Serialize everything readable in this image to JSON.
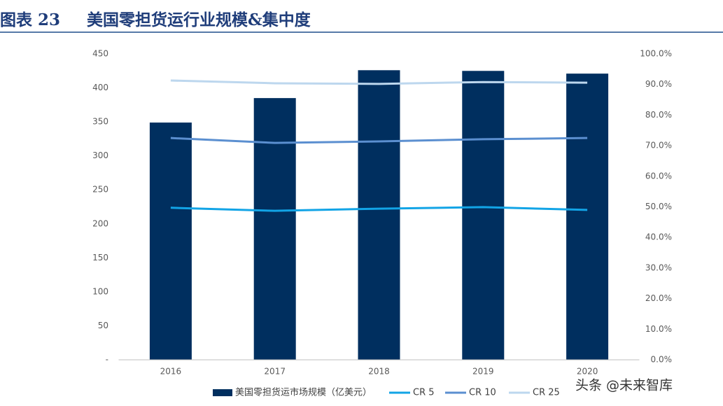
{
  "chart_data": {
    "type": "bar",
    "figure_label": "图表 23",
    "title": "美国零担货运行业规模&集中度",
    "watermark": "头条 @未来智库",
    "categories": [
      "2016",
      "2017",
      "2018",
      "2019",
      "2020"
    ],
    "series": [
      {
        "name": "美国零担货运市场规模（亿美元）",
        "type": "bar",
        "color": "#002f5f",
        "values": [
          349,
          385,
          426,
          425,
          421
        ]
      },
      {
        "name": "CR 5",
        "type": "line",
        "axis": "y2",
        "color": "#12a4e6",
        "values": [
          49.7,
          48.7,
          49.4,
          49.9,
          49.0
        ]
      },
      {
        "name": "CR 10",
        "type": "line",
        "axis": "y2",
        "color": "#5b8fd0",
        "values": [
          72.5,
          70.9,
          71.4,
          72.1,
          72.5
        ]
      },
      {
        "name": "CR 25",
        "type": "line",
        "axis": "y2",
        "color": "#bdd7ee",
        "values": [
          91.3,
          90.4,
          90.2,
          90.8,
          90.6
        ]
      }
    ],
    "ylim": [
      0,
      450
    ],
    "yticks": [
      {
        "value": 0,
        "label": "-"
      },
      50,
      100,
      150,
      200,
      250,
      300,
      350,
      400,
      450
    ],
    "y2lim": [
      0,
      100
    ],
    "y2ticks": [
      {
        "value": 0,
        "label": "0.0%"
      },
      {
        "value": 10,
        "label": "10.0%"
      },
      {
        "value": 20,
        "label": "20.0%"
      },
      {
        "value": 30,
        "label": "30.0%"
      },
      {
        "value": 40,
        "label": "40.0%"
      },
      {
        "value": 50,
        "label": "50.0%"
      },
      {
        "value": 60,
        "label": "60.0%"
      },
      {
        "value": 70,
        "label": "70.0%"
      },
      {
        "value": 80,
        "label": "80.0%"
      },
      {
        "value": 90,
        "label": "90.0%"
      },
      {
        "value": 100,
        "label": "100.0%"
      }
    ],
    "grid": false,
    "legend": "bottom"
  }
}
